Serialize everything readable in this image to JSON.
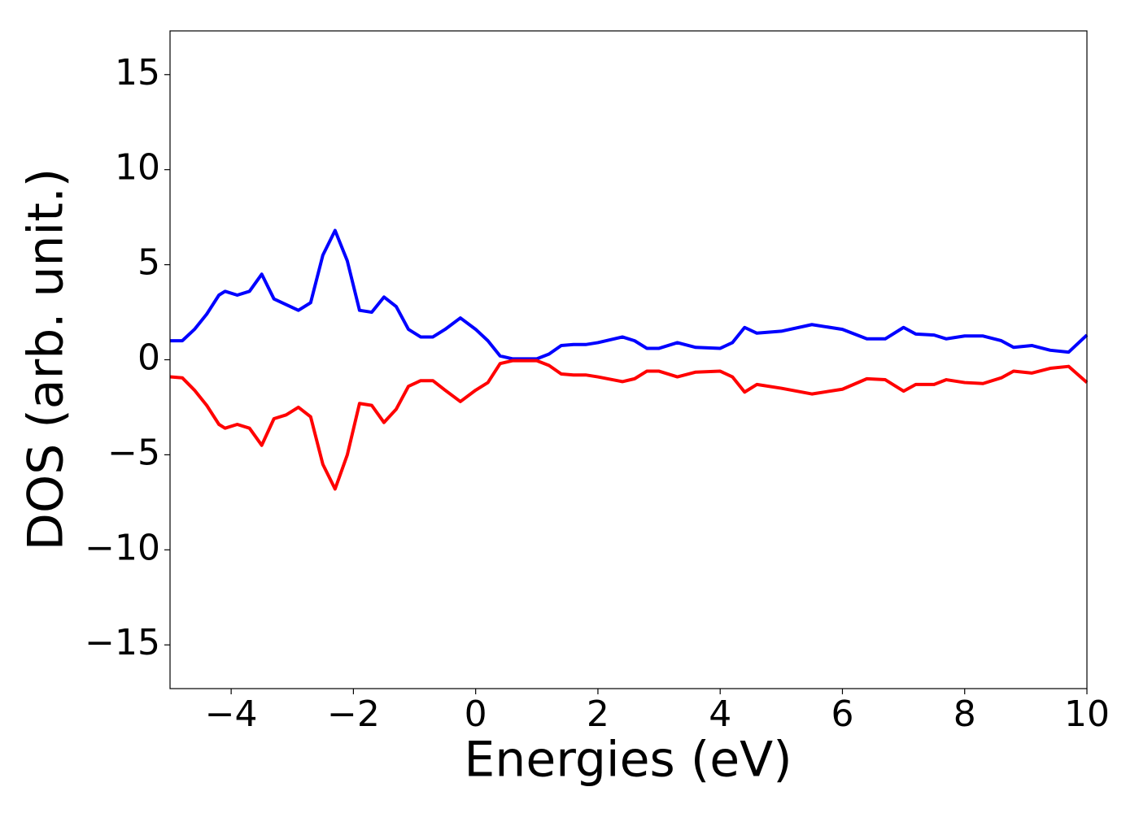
{
  "chart_data": {
    "type": "line",
    "x_label": "Energies (eV)",
    "y_label": "DOS (arb. unit.)",
    "xlim": [
      -5,
      10
    ],
    "ylim": [
      -17.3,
      17.3
    ],
    "xticks": [
      {
        "value": -4,
        "label": "−4"
      },
      {
        "value": -2,
        "label": "−2"
      },
      0,
      2,
      4,
      6,
      8,
      10
    ],
    "yticks": [
      {
        "value": -15,
        "label": "−15"
      },
      {
        "value": -10,
        "label": "−10"
      },
      {
        "value": -5,
        "label": "−5"
      },
      0,
      5,
      10,
      15
    ],
    "x": [
      -5,
      -4.8,
      -4.6,
      -4.4,
      -4.2,
      -4.1,
      -3.9,
      -3.7,
      -3.5,
      -3.3,
      -3.1,
      -2.9,
      -2.7,
      -2.5,
      -2.3,
      -2.1,
      -1.9,
      -1.7,
      -1.5,
      -1.3,
      -1.1,
      -0.9,
      -0.7,
      -0.5,
      -0.25,
      0,
      0.2,
      0.4,
      0.6,
      0.8,
      1.0,
      1.2,
      1.4,
      1.6,
      1.8,
      2.0,
      2.4,
      2.6,
      2.8,
      3.0,
      3.3,
      3.6,
      4.0,
      4.2,
      4.4,
      4.6,
      5.0,
      5.5,
      6.0,
      6.4,
      6.7,
      7.0,
      7.2,
      7.5,
      7.7,
      8.0,
      8.3,
      8.6,
      8.8,
      9.1,
      9.4,
      9.7,
      10
    ],
    "series": [
      {
        "color": "#0000ff",
        "values": [
          1.0,
          1.0,
          1.6,
          2.4,
          3.4,
          3.6,
          3.4,
          3.6,
          4.5,
          3.2,
          2.9,
          2.6,
          3.0,
          5.5,
          6.8,
          5.2,
          2.6,
          2.5,
          3.3,
          2.8,
          1.6,
          1.2,
          1.2,
          1.6,
          2.2,
          1.6,
          1.0,
          0.2,
          0.05,
          0.05,
          0.05,
          0.3,
          0.75,
          0.8,
          0.8,
          0.9,
          1.2,
          1.0,
          0.6,
          0.6,
          0.9,
          0.65,
          0.6,
          0.9,
          1.7,
          1.4,
          1.5,
          1.85,
          1.6,
          1.1,
          1.1,
          1.7,
          1.35,
          1.3,
          1.1,
          1.25,
          1.25,
          1.0,
          0.65,
          0.75,
          0.5,
          0.4,
          1.3
        ]
      },
      {
        "color": "#ff0000",
        "values": [
          -0.9,
          -0.95,
          -1.6,
          -2.4,
          -3.4,
          -3.6,
          -3.4,
          -3.6,
          -4.5,
          -3.1,
          -2.9,
          -2.5,
          -3.0,
          -5.5,
          -6.8,
          -5.0,
          -2.3,
          -2.4,
          -3.3,
          -2.6,
          -1.4,
          -1.1,
          -1.1,
          -1.6,
          -2.2,
          -1.6,
          -1.2,
          -0.2,
          -0.05,
          -0.05,
          -0.05,
          -0.3,
          -0.75,
          -0.8,
          -0.8,
          -0.9,
          -1.15,
          -1.0,
          -0.6,
          -0.6,
          -0.9,
          -0.65,
          -0.6,
          -0.9,
          -1.7,
          -1.3,
          -1.5,
          -1.8,
          -1.55,
          -1.0,
          -1.05,
          -1.65,
          -1.3,
          -1.3,
          -1.05,
          -1.2,
          -1.25,
          -0.95,
          -0.6,
          -0.7,
          -0.45,
          -0.35,
          -1.2
        ]
      }
    ]
  }
}
